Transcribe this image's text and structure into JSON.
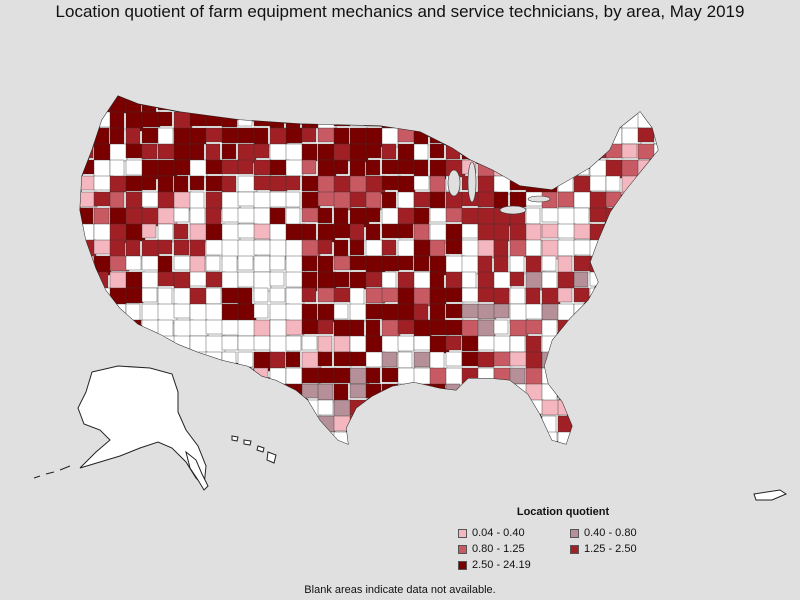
{
  "title": "Location quotient of farm equipment mechanics and service technicians, by area, May 2019",
  "legend": {
    "title": "Location quotient",
    "items": [
      {
        "label": "0.04 - 0.40",
        "color": "#f4b6bf"
      },
      {
        "label": "0.40 - 0.80",
        "color": "#b59098"
      },
      {
        "label": "0.80 - 1.25",
        "color": "#c85a63"
      },
      {
        "label": "1.25 - 2.50",
        "color": "#a02026"
      },
      {
        "label": "2.50 - 24.19",
        "color": "#7a0000"
      }
    ]
  },
  "note": "Blank areas indicate data not available.",
  "colors": {
    "background": "#e0e0e0",
    "no_data": "#ffffff",
    "border": "#222222"
  }
}
